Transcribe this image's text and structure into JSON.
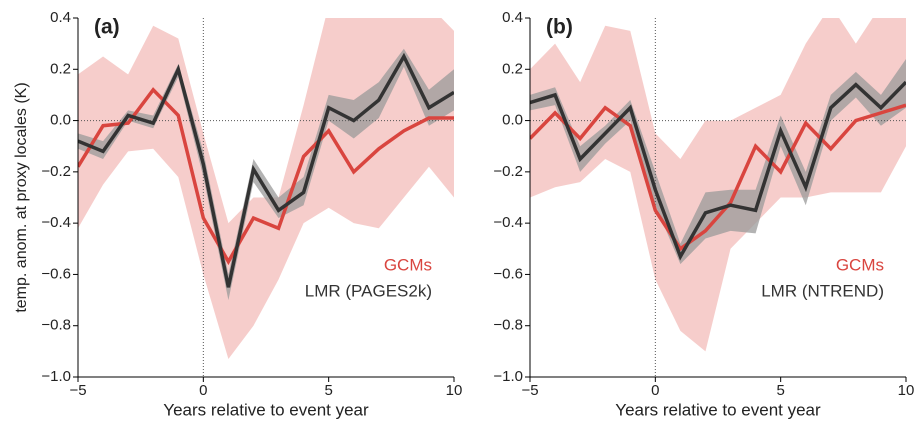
{
  "chart_data": [
    {
      "type": "line",
      "panel_label": "(a)",
      "ylabel": "temp. anom. at proxy locales (K)",
      "xlabel": "Years relative to event year",
      "x": [
        -5,
        -4,
        -3,
        -2,
        -1,
        0,
        1,
        2,
        3,
        4,
        5,
        6,
        7,
        8,
        9,
        10
      ],
      "xlim": [
        -5,
        10
      ],
      "xticks": [
        {
          "value": -5,
          "label": "−5"
        },
        0,
        5,
        10
      ],
      "ylim": [
        -1.0,
        0.4
      ],
      "yticks": [
        {
          "value": -1.0,
          "label": "−1.0"
        },
        {
          "value": -0.8,
          "label": "−0.8"
        },
        {
          "value": -0.6,
          "label": "−0.6"
        },
        {
          "value": -0.4,
          "label": "−0.4"
        },
        {
          "value": -0.2,
          "label": "−0.2"
        },
        {
          "value": 0,
          "label": "0.0"
        },
        {
          "value": 0.2,
          "label": "0.2"
        },
        {
          "value": 0.4,
          "label": "0.4"
        }
      ],
      "zero_lines": true,
      "legend": "lower right",
      "series": [
        {
          "name": "GCMs",
          "color": "#d9453f",
          "band_color": "#f4c4c2",
          "values": [
            -0.18,
            -0.02,
            -0.01,
            0.12,
            0.02,
            -0.38,
            -0.55,
            -0.38,
            -0.42,
            -0.14,
            -0.04,
            -0.2,
            -0.11,
            -0.04,
            0.01,
            0.01
          ],
          "upper": [
            0.18,
            0.25,
            0.18,
            0.37,
            0.32,
            -0.05,
            -0.4,
            -0.3,
            -0.3,
            0.06,
            0.45,
            0.45,
            0.45,
            0.45,
            0.45,
            0.35
          ],
          "lower": [
            -0.42,
            -0.25,
            -0.12,
            -0.11,
            -0.22,
            -0.6,
            -0.93,
            -0.8,
            -0.62,
            -0.4,
            -0.34,
            -0.4,
            -0.42,
            -0.3,
            -0.18,
            -0.3
          ]
        },
        {
          "name": "LMR (PAGES2k)",
          "color": "#333333",
          "band_color": "#9a9a9a",
          "values": [
            -0.08,
            -0.12,
            0.02,
            -0.01,
            0.2,
            -0.17,
            -0.65,
            -0.19,
            -0.35,
            -0.28,
            0.05,
            0.0,
            0.08,
            0.25,
            0.05,
            0.11
          ],
          "upper": [
            -0.05,
            -0.08,
            0.04,
            0.02,
            0.22,
            -0.12,
            -0.6,
            -0.15,
            -0.3,
            -0.22,
            0.1,
            0.08,
            0.15,
            0.28,
            0.12,
            0.2
          ],
          "lower": [
            -0.11,
            -0.15,
            0.0,
            -0.03,
            0.17,
            -0.22,
            -0.7,
            -0.24,
            -0.38,
            -0.33,
            0.0,
            -0.07,
            0.01,
            0.21,
            -0.02,
            0.04
          ]
        }
      ]
    },
    {
      "type": "line",
      "panel_label": "(b)",
      "xlabel": "Years relative to event year",
      "x": [
        -5,
        -4,
        -3,
        -2,
        -1,
        0,
        1,
        2,
        3,
        4,
        5,
        6,
        7,
        8,
        9,
        10
      ],
      "xlim": [
        -5,
        10
      ],
      "xticks": [
        {
          "value": -5,
          "label": "−5"
        },
        0,
        5,
        10
      ],
      "ylim": [
        -1.0,
        0.4
      ],
      "yticks": [
        {
          "value": -1.0,
          "label": "−1.0"
        },
        {
          "value": -0.8,
          "label": "−0.8"
        },
        {
          "value": -0.6,
          "label": "−0.6"
        },
        {
          "value": -0.4,
          "label": "−0.4"
        },
        {
          "value": -0.2,
          "label": "−0.2"
        },
        {
          "value": 0,
          "label": "0.0"
        },
        {
          "value": 0.2,
          "label": "0.2"
        },
        {
          "value": 0.4,
          "label": "0.4"
        }
      ],
      "zero_lines": true,
      "legend": "lower right",
      "series": [
        {
          "name": "GCMs",
          "color": "#d9453f",
          "band_color": "#f4c4c2",
          "values": [
            -0.07,
            0.03,
            -0.07,
            0.05,
            -0.02,
            -0.35,
            -0.5,
            -0.43,
            -0.32,
            -0.1,
            -0.2,
            -0.01,
            -0.11,
            0.0,
            0.03,
            0.06
          ],
          "upper": [
            0.2,
            0.3,
            0.15,
            0.37,
            0.35,
            -0.05,
            -0.15,
            0.0,
            0.0,
            0.05,
            0.1,
            0.3,
            0.45,
            0.3,
            0.45,
            0.45
          ],
          "lower": [
            -0.3,
            -0.26,
            -0.24,
            -0.15,
            -0.2,
            -0.62,
            -0.82,
            -0.9,
            -0.5,
            -0.4,
            -0.3,
            -0.3,
            -0.28,
            -0.28,
            -0.28,
            -0.1
          ]
        },
        {
          "name": "LMR (NTREND)",
          "color": "#333333",
          "band_color": "#9a9a9a",
          "values": [
            0.07,
            0.1,
            -0.15,
            -0.05,
            0.05,
            -0.27,
            -0.53,
            -0.36,
            -0.33,
            -0.35,
            -0.04,
            -0.26,
            0.05,
            0.14,
            0.05,
            0.15
          ],
          "upper": [
            0.1,
            0.13,
            -0.1,
            -0.02,
            0.08,
            -0.2,
            -0.48,
            -0.28,
            -0.27,
            -0.27,
            0.02,
            -0.2,
            0.1,
            0.19,
            0.1,
            0.24
          ],
          "lower": [
            0.04,
            0.06,
            -0.2,
            -0.09,
            0.0,
            -0.33,
            -0.56,
            -0.46,
            -0.43,
            -0.44,
            -0.1,
            -0.33,
            0.0,
            0.09,
            -0.02,
            0.05
          ]
        }
      ]
    }
  ]
}
